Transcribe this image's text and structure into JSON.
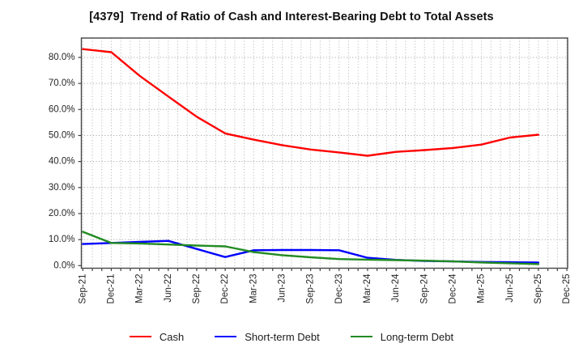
{
  "window": {
    "title": "[4379]  Trend of Ratio of Cash and Interest-Bearing Debt to Total Assets"
  },
  "chart_data": {
    "type": "line",
    "title": "[4379]  Trend of Ratio of Cash and Interest-Bearing Debt to Total Assets",
    "categories": [
      "Sep-21",
      "Dec-21",
      "Mar-22",
      "Jun-22",
      "Sep-22",
      "Dec-22",
      "Mar-23",
      "Jun-23",
      "Sep-23",
      "Dec-23",
      "Mar-24",
      "Jun-24",
      "Sep-24",
      "Dec-24",
      "Mar-25",
      "Jun-25",
      "Sep-25",
      "Dec-25"
    ],
    "series": [
      {
        "name": "Cash",
        "color": "#ff0000",
        "values": [
          83.2,
          82.0,
          72.9,
          65.0,
          57.2,
          50.8,
          48.4,
          46.3,
          44.6,
          43.5,
          42.2,
          43.7,
          44.4,
          45.2,
          46.5,
          49.2,
          50.3
        ]
      },
      {
        "name": "Short-term Debt",
        "color": "#0000ff",
        "values": [
          8.3,
          8.7,
          9.1,
          9.5,
          6.4,
          3.3,
          5.9,
          6.0,
          6.0,
          5.9,
          3.0,
          2.2,
          1.8,
          1.6,
          1.4,
          1.3,
          1.2
        ]
      },
      {
        "name": "Long-term Debt",
        "color": "#228b22",
        "values": [
          13.0,
          8.7,
          8.5,
          8.1,
          7.7,
          7.4,
          5.2,
          4.0,
          3.2,
          2.5,
          2.3,
          2.1,
          1.9,
          1.6,
          1.2,
          0.9,
          0.6
        ]
      }
    ],
    "yticks": [
      "0.0%",
      "10.0%",
      "20.0%",
      "30.0%",
      "40.0%",
      "50.0%",
      "60.0%",
      "70.0%",
      "80.0%"
    ],
    "ytick_step": 10,
    "ylim": [
      -1,
      87.45
    ],
    "x_minor_per_interval": 3,
    "grid": true,
    "legend_position": "bottom"
  }
}
